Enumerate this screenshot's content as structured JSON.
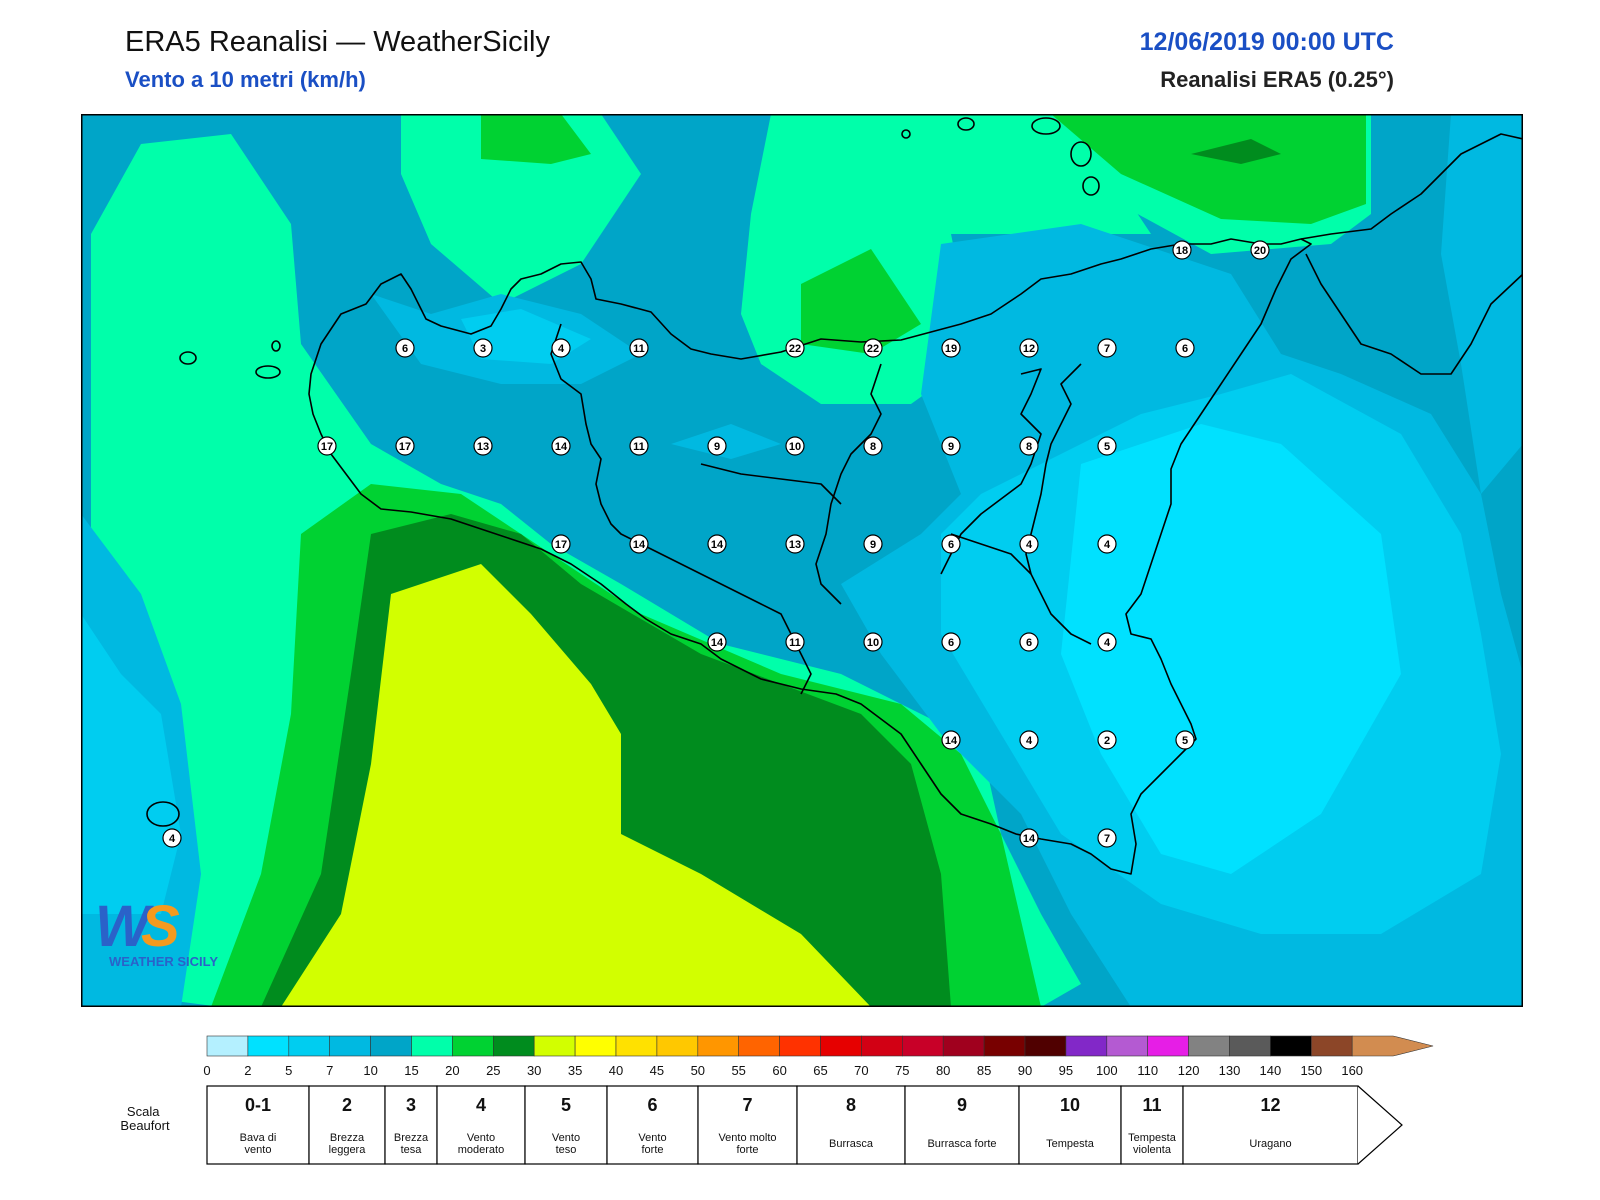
{
  "header": {
    "title": "ERA5 Reanalisi — WeatherSicily",
    "subtitle": "Vento a 10 metri (km/h)",
    "datetime": "12/06/2019 00:00 UTC",
    "source": "Reanalisi ERA5 (0.25°)"
  },
  "colors": {
    "land_outline": "#000000",
    "station_fill": "#ffffff"
  },
  "colorbar": {
    "ticks": [
      "0",
      "2",
      "5",
      "7",
      "10",
      "15",
      "20",
      "25",
      "30",
      "35",
      "40",
      "45",
      "50",
      "55",
      "60",
      "65",
      "70",
      "75",
      "80",
      "85",
      "90",
      "95",
      "100",
      "110",
      "120",
      "130",
      "140",
      "150",
      "160"
    ],
    "colors": [
      "#b4f0ff",
      "#00e1ff",
      "#00cdf0",
      "#00b9e1",
      "#00a5c8",
      "#00ffaa",
      "#00d232",
      "#008c1e",
      "#d2ff00",
      "#ffff00",
      "#ffe100",
      "#ffc800",
      "#ff9600",
      "#ff6400",
      "#ff3200",
      "#e60000",
      "#d20014",
      "#c80028",
      "#a0001e",
      "#780000",
      "#500000",
      "#8228c8",
      "#b45ad2",
      "#e61ee6",
      "#828282",
      "#5a5a5a",
      "#000000",
      "#8c4628",
      "#d28c50"
    ]
  },
  "beaufort": {
    "label": "Scala Beaufort",
    "classes": [
      {
        "num": "0-1",
        "desc": "Bava di vento"
      },
      {
        "num": "2",
        "desc": "Brezza leggera"
      },
      {
        "num": "3",
        "desc": "Brezza tesa"
      },
      {
        "num": "4",
        "desc": "Vento moderato"
      },
      {
        "num": "5",
        "desc": "Vento teso"
      },
      {
        "num": "6",
        "desc": "Vento forte"
      },
      {
        "num": "7",
        "desc": "Vento molto forte"
      },
      {
        "num": "8",
        "desc": "Burrasca"
      },
      {
        "num": "9",
        "desc": "Burrasca forte"
      },
      {
        "num": "10",
        "desc": "Tempesta"
      },
      {
        "num": "11",
        "desc": "Tempesta violenta"
      },
      {
        "num": "12",
        "desc": "Uragano"
      }
    ]
  },
  "stations": {
    "row1": [
      "6",
      "3",
      "4",
      "11",
      "22",
      "22",
      "19",
      "12",
      "7",
      "6"
    ],
    "row2": [
      "17",
      "17",
      "13",
      "14",
      "11",
      "9",
      "10",
      "8",
      "9",
      "8",
      "5"
    ],
    "row3": [
      "17",
      "14",
      "14",
      "13",
      "9",
      "6",
      "4",
      "4"
    ],
    "row4": [
      "14",
      "11",
      "10",
      "6",
      "6",
      "4"
    ],
    "row5": [
      "14",
      "4",
      "2",
      "5"
    ],
    "row6": [
      "14",
      "7"
    ],
    "northeast": [
      "18",
      "20"
    ],
    "pantelleria": "4"
  },
  "logo": {
    "text": "WEATHER SICILY"
  }
}
